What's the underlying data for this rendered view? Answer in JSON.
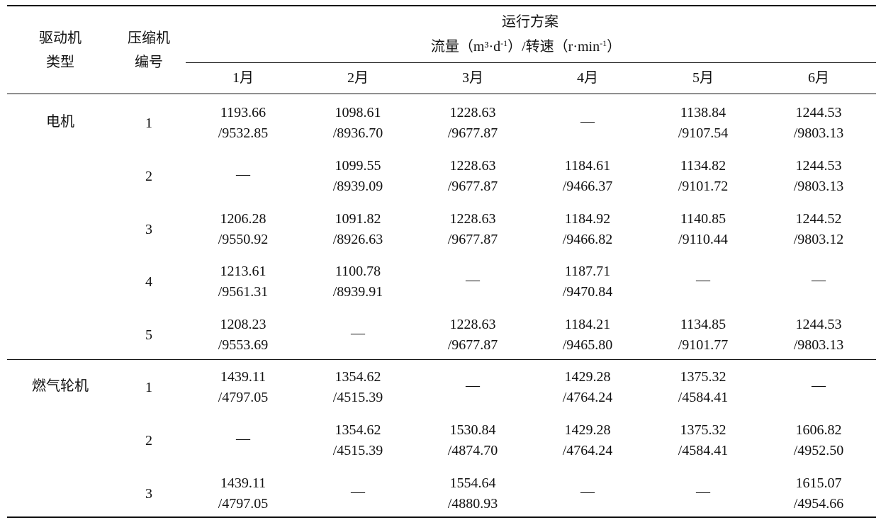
{
  "header": {
    "driver_type": [
      "驱动机",
      "类型"
    ],
    "compressor_no": [
      "压缩机",
      "编号"
    ],
    "plan_title": "运行方案",
    "plan_units": {
      "flow": "流量（m³·d",
      "flow_sup": "-1",
      "mid": "）/转速（r·min",
      "speed_sup": "-1",
      "end": "）"
    },
    "months": [
      "1月",
      "2月",
      "3月",
      "4月",
      "5月",
      "6月"
    ]
  },
  "groups": [
    {
      "driver": "电机",
      "rows": [
        {
          "id": "1",
          "cells": [
            [
              "1193.66",
              "/9532.85"
            ],
            [
              "1098.61",
              "/8936.70"
            ],
            [
              "1228.63",
              "/9677.87"
            ],
            [
              "—"
            ],
            [
              "1138.84",
              "/9107.54"
            ],
            [
              "1244.53",
              "/9803.13"
            ]
          ]
        },
        {
          "id": "2",
          "cells": [
            [
              "—"
            ],
            [
              "1099.55",
              "/8939.09"
            ],
            [
              "1228.63",
              "/9677.87"
            ],
            [
              "1184.61",
              "/9466.37"
            ],
            [
              "1134.82",
              "/9101.72"
            ],
            [
              "1244.53",
              "/9803.13"
            ]
          ]
        },
        {
          "id": "3",
          "cells": [
            [
              "1206.28",
              "/9550.92"
            ],
            [
              "1091.82",
              "/8926.63"
            ],
            [
              "1228.63",
              "/9677.87"
            ],
            [
              "1184.92",
              "/9466.82"
            ],
            [
              "1140.85",
              "/9110.44"
            ],
            [
              "1244.52",
              "/9803.12"
            ]
          ]
        },
        {
          "id": "4",
          "cells": [
            [
              "1213.61",
              "/9561.31"
            ],
            [
              "1100.78",
              "/8939.91"
            ],
            [
              "—"
            ],
            [
              "1187.71",
              "/9470.84"
            ],
            [
              "—"
            ],
            [
              "—"
            ]
          ]
        },
        {
          "id": "5",
          "cells": [
            [
              "1208.23",
              "/9553.69"
            ],
            [
              "—"
            ],
            [
              "1228.63",
              "/9677.87"
            ],
            [
              "1184.21",
              "/9465.80"
            ],
            [
              "1134.85",
              "/9101.77"
            ],
            [
              "1244.53",
              "/9803.13"
            ]
          ]
        }
      ]
    },
    {
      "driver": "燃气轮机",
      "rows": [
        {
          "id": "1",
          "cells": [
            [
              "1439.11",
              "/4797.05"
            ],
            [
              "1354.62",
              "/4515.39"
            ],
            [
              "—"
            ],
            [
              "1429.28",
              "/4764.24"
            ],
            [
              "1375.32",
              "/4584.41"
            ],
            [
              "—"
            ]
          ]
        },
        {
          "id": "2",
          "cells": [
            [
              "—"
            ],
            [
              "1354.62",
              "/4515.39"
            ],
            [
              "1530.84",
              "/4874.70"
            ],
            [
              "1429.28",
              "/4764.24"
            ],
            [
              "1375.32",
              "/4584.41"
            ],
            [
              "1606.82",
              "/4952.50"
            ]
          ]
        },
        {
          "id": "3",
          "cells": [
            [
              "1439.11",
              "/4797.05"
            ],
            [
              "—"
            ],
            [
              "1554.64",
              "/4880.93"
            ],
            [
              "—"
            ],
            [
              "—"
            ],
            [
              "1615.07",
              "/4954.66"
            ]
          ]
        }
      ]
    }
  ]
}
